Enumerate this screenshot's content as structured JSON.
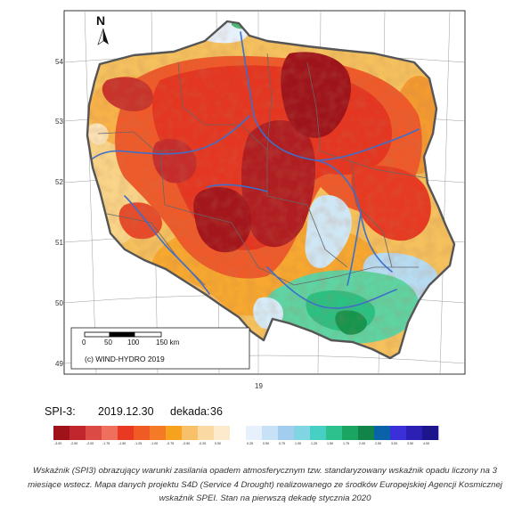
{
  "map": {
    "north_label": "N",
    "lat_labels": [
      "54",
      "53",
      "52",
      "51",
      "50",
      "49"
    ],
    "lon_label": "19",
    "scale": {
      "ticks": [
        "0",
        "50",
        "100",
        "150 km"
      ]
    },
    "copyright": "(c) WIND-HYDRO 2019"
  },
  "index": {
    "name_label": "SPI-3:",
    "date": "2019.12.30",
    "dekad_label": "dekada:",
    "dekad_value": "36"
  },
  "legend": {
    "colors": [
      "#a01219",
      "#c0272d",
      "#db4a44",
      "#ef6f5d",
      "#e83a22",
      "#f05a24",
      "#f47a25",
      "#f7a21e",
      "#f9c06a",
      "#fbd9a3",
      "#fde9cc",
      "#ffffff",
      "#e6f1fb",
      "#c7e1f6",
      "#a3cdee",
      "#7fd6e2",
      "#48cfc4",
      "#2cc18d",
      "#1aa562",
      "#11844a",
      "#0a63a8",
      "#3a2fd8",
      "#2b1fb4",
      "#1d158c"
    ],
    "ticks": [
      "-3.00",
      "-2.50",
      "-2.00",
      "-1.75",
      "-1.50",
      "-1.25",
      "-1.00",
      "-0.75",
      "-0.50",
      "-0.25",
      "0.00",
      "",
      "0.25",
      "0.50",
      "0.75",
      "1.00",
      "1.25",
      "1.50",
      "1.75",
      "2.00",
      "2.50",
      "3.00",
      "3.50",
      "4.00"
    ]
  },
  "caption": {
    "line1": "Wskaźnik (SPI3) obrazujący warunki zasilania opadem atmosferycznym tzw. standaryzowany wskaźnik opadu liczony na 3",
    "line2": "miesiące wstecz. Mapa danych projektu S4D (Service 4 Drought) realizowanego ze środków Europejskiej Agencji Kosmicznej",
    "line3": "wskaźnik SPEI. Stan na pierwszą dekadę stycznia 2020"
  }
}
